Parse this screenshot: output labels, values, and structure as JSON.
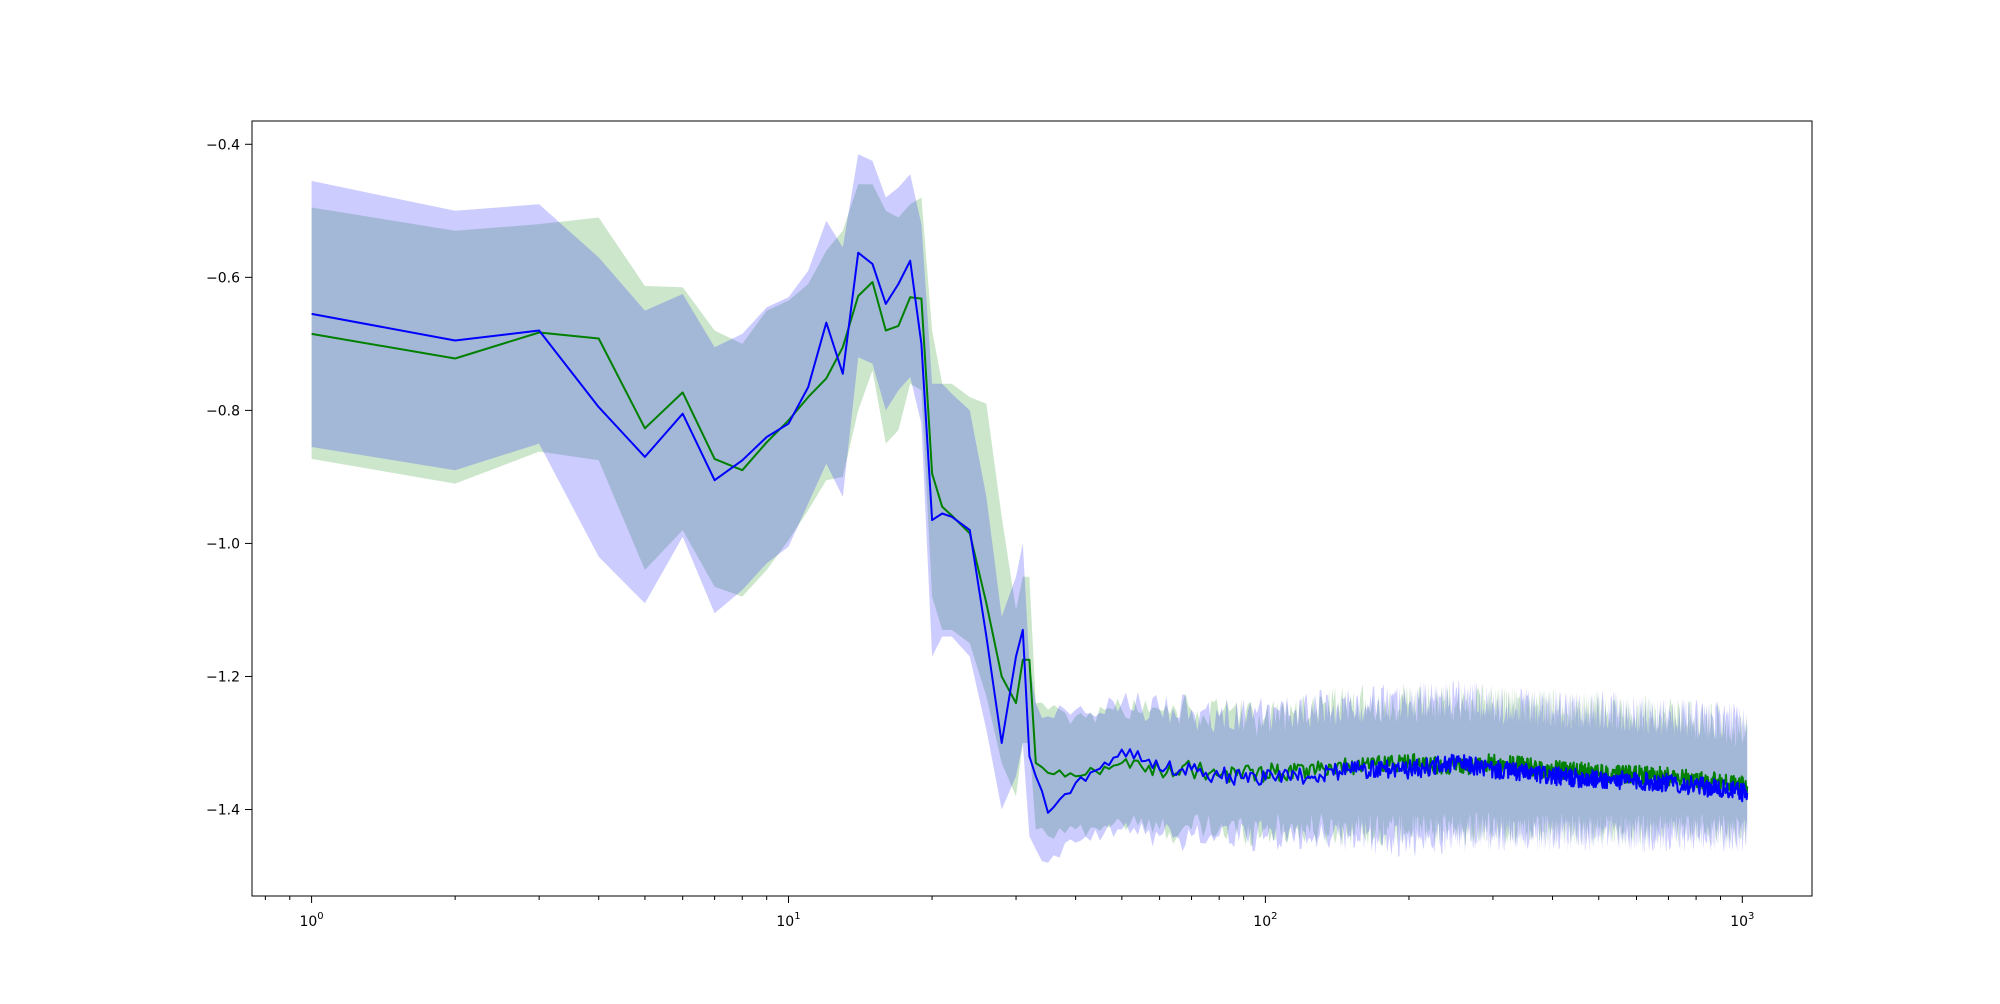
{
  "chart_data": {
    "type": "line",
    "xscale": "log",
    "xlim": [
      0.75,
      1400
    ],
    "ylim": [
      -1.53,
      -0.365
    ],
    "grid": false,
    "legend": "none",
    "title": "",
    "xlabel": "",
    "ylabel": "",
    "x_ticks": [
      {
        "value": 1,
        "base": "10",
        "exp": "0"
      },
      {
        "value": 10,
        "base": "10",
        "exp": "1"
      },
      {
        "value": 100,
        "base": "10",
        "exp": "2"
      },
      {
        "value": 1000,
        "base": "10",
        "exp": "3"
      }
    ],
    "y_ticks": [
      {
        "value": -0.4,
        "label": "−0.4"
      },
      {
        "value": -0.6,
        "label": "−0.6"
      },
      {
        "value": -0.8,
        "label": "−0.8"
      },
      {
        "value": -1.0,
        "label": "−1.0"
      },
      {
        "value": -1.2,
        "label": "−1.2"
      },
      {
        "value": -1.4,
        "label": "−1.4"
      }
    ],
    "series": [
      {
        "color": "#008000",
        "band_color": "#008000",
        "band_opacity": 0.2,
        "x": [
          1,
          2,
          3,
          4,
          5,
          6,
          7,
          8,
          9,
          10,
          11,
          12,
          13,
          14,
          15,
          16,
          17,
          18,
          19,
          20,
          21,
          22,
          24,
          26,
          28,
          30,
          31,
          32,
          33,
          35,
          40,
          50,
          60,
          70,
          80,
          100,
          150,
          200,
          250,
          300,
          400,
          500,
          700,
          1024
        ],
        "y": [
          -0.685,
          -0.722,
          -0.683,
          -0.692,
          -0.827,
          -0.773,
          -0.873,
          -0.89,
          -0.848,
          -0.815,
          -0.78,
          -0.752,
          -0.705,
          -0.628,
          -0.607,
          -0.68,
          -0.673,
          -0.63,
          -0.632,
          -0.895,
          -0.945,
          -0.958,
          -0.985,
          -1.09,
          -1.2,
          -1.24,
          -1.175,
          -1.175,
          -1.33,
          -1.345,
          -1.35,
          -1.33,
          -1.34,
          -1.34,
          -1.35,
          -1.345,
          -1.335,
          -1.33,
          -1.335,
          -1.33,
          -1.34,
          -1.345,
          -1.35,
          -1.365
        ],
        "lower": [
          -0.873,
          -0.91,
          -0.862,
          -0.875,
          -1.04,
          -0.98,
          -1.065,
          -1.08,
          -1.04,
          -0.995,
          -0.95,
          -0.905,
          -0.9,
          -0.8,
          -0.74,
          -0.85,
          -0.83,
          -0.76,
          -0.77,
          -1.08,
          -1.13,
          -1.13,
          -1.15,
          -1.23,
          -1.33,
          -1.38,
          -1.3,
          -1.3,
          -1.43,
          -1.44,
          -1.43,
          -1.42,
          -1.43,
          -1.43,
          -1.43,
          -1.43,
          -1.43,
          -1.43,
          -1.43,
          -1.43,
          -1.43,
          -1.43,
          -1.43,
          -1.43
        ],
        "upper": [
          -0.495,
          -0.53,
          -0.52,
          -0.51,
          -0.613,
          -0.615,
          -0.68,
          -0.7,
          -0.65,
          -0.635,
          -0.61,
          -0.56,
          -0.53,
          -0.46,
          -0.46,
          -0.5,
          -0.51,
          -0.49,
          -0.48,
          -0.68,
          -0.76,
          -0.76,
          -0.78,
          -0.79,
          -0.96,
          -1.1,
          -1.05,
          -1.05,
          -1.24,
          -1.25,
          -1.26,
          -1.25,
          -1.25,
          -1.25,
          -1.26,
          -1.26,
          -1.24,
          -1.24,
          -1.24,
          -1.24,
          -1.25,
          -1.25,
          -1.26,
          -1.28
        ]
      },
      {
        "color": "#0000ff",
        "band_color": "#0000ff",
        "band_opacity": 0.2,
        "x": [
          1,
          2,
          3,
          4,
          5,
          6,
          7,
          8,
          9,
          10,
          11,
          12,
          13,
          14,
          15,
          16,
          17,
          18,
          19,
          20,
          21,
          22,
          24,
          26,
          28,
          30,
          31,
          32,
          33,
          35,
          40,
          50,
          60,
          70,
          80,
          100,
          150,
          200,
          250,
          300,
          400,
          500,
          700,
          1024
        ],
        "y": [
          -0.655,
          -0.695,
          -0.68,
          -0.795,
          -0.87,
          -0.805,
          -0.905,
          -0.875,
          -0.84,
          -0.82,
          -0.765,
          -0.668,
          -0.745,
          -0.563,
          -0.58,
          -0.64,
          -0.61,
          -0.575,
          -0.7,
          -0.965,
          -0.955,
          -0.96,
          -0.98,
          -1.14,
          -1.3,
          -1.17,
          -1.13,
          -1.32,
          -1.35,
          -1.405,
          -1.36,
          -1.31,
          -1.34,
          -1.34,
          -1.35,
          -1.355,
          -1.34,
          -1.34,
          -1.33,
          -1.34,
          -1.35,
          -1.355,
          -1.36,
          -1.375
        ],
        "lower": [
          -0.855,
          -0.89,
          -0.85,
          -1.02,
          -1.09,
          -0.99,
          -1.105,
          -1.07,
          -1.03,
          -1.005,
          -0.94,
          -0.88,
          -0.93,
          -0.72,
          -0.73,
          -0.8,
          -0.77,
          -0.75,
          -0.82,
          -1.17,
          -1.14,
          -1.14,
          -1.17,
          -1.28,
          -1.4,
          -1.35,
          -1.3,
          -1.44,
          -1.46,
          -1.48,
          -1.45,
          -1.43,
          -1.44,
          -1.44,
          -1.44,
          -1.44,
          -1.44,
          -1.45,
          -1.44,
          -1.44,
          -1.44,
          -1.44,
          -1.44,
          -1.44
        ],
        "upper": [
          -0.455,
          -0.5,
          -0.49,
          -0.57,
          -0.65,
          -0.625,
          -0.705,
          -0.685,
          -0.645,
          -0.63,
          -0.59,
          -0.515,
          -0.555,
          -0.415,
          -0.425,
          -0.48,
          -0.465,
          -0.445,
          -0.52,
          -0.76,
          -0.76,
          -0.775,
          -0.8,
          -0.93,
          -1.11,
          -1.05,
          -1.0,
          -1.18,
          -1.24,
          -1.26,
          -1.25,
          -1.24,
          -1.25,
          -1.25,
          -1.26,
          -1.26,
          -1.24,
          -1.24,
          -1.23,
          -1.24,
          -1.25,
          -1.25,
          -1.26,
          -1.27
        ]
      }
    ]
  }
}
